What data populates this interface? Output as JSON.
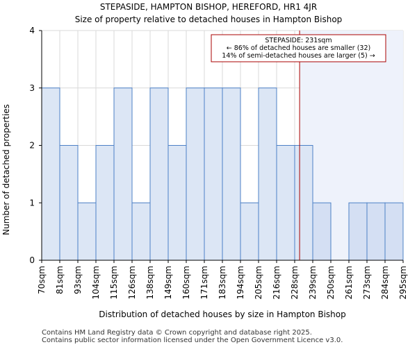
{
  "chart_data": {
    "type": "bar",
    "title": "STEPASIDE, HAMPTON BISHOP, HEREFORD, HR1 4JR",
    "subtitle": "Size of property relative to detached houses in Hampton Bishop",
    "xlabel": "Distribution of detached houses by size in Hampton Bishop",
    "ylabel": "Number of detached properties",
    "ylim": [
      0,
      4
    ],
    "yticks": [
      "0",
      "1",
      "2",
      "3",
      "4"
    ],
    "bin_edges": [
      "70sqm",
      "81sqm",
      "93sqm",
      "104sqm",
      "115sqm",
      "126sqm",
      "138sqm",
      "149sqm",
      "160sqm",
      "171sqm",
      "183sqm",
      "194sqm",
      "205sqm",
      "216sqm",
      "228sqm",
      "239sqm",
      "250sqm",
      "261sqm",
      "273sqm",
      "284sqm",
      "295sqm"
    ],
    "values": [
      3,
      2,
      1,
      2,
      3,
      1,
      3,
      2,
      3,
      3,
      3,
      1,
      3,
      2,
      2,
      1,
      0,
      1,
      1,
      1
    ],
    "grid": true,
    "marker": {
      "value": 231,
      "label_lines": [
        "STEPASIDE: 231sqm",
        "← 86% of detached houses are smaller (32)",
        "14% of semi-detached houses are larger (5) →"
      ]
    },
    "colors": {
      "bar_fill": "#dce6f5",
      "bar_fill_highlight": "#d4dff3",
      "bar_stroke": "#4c80c6",
      "highlight_region": "#eef2fb",
      "marker_line": "#aa0000",
      "grid": "#d9d9d9",
      "axis": "#000000"
    }
  },
  "footer": {
    "line1": "Contains HM Land Registry data © Crown copyright and database right 2025.",
    "line2": "Contains public sector information licensed under the Open Government Licence v3.0."
  }
}
